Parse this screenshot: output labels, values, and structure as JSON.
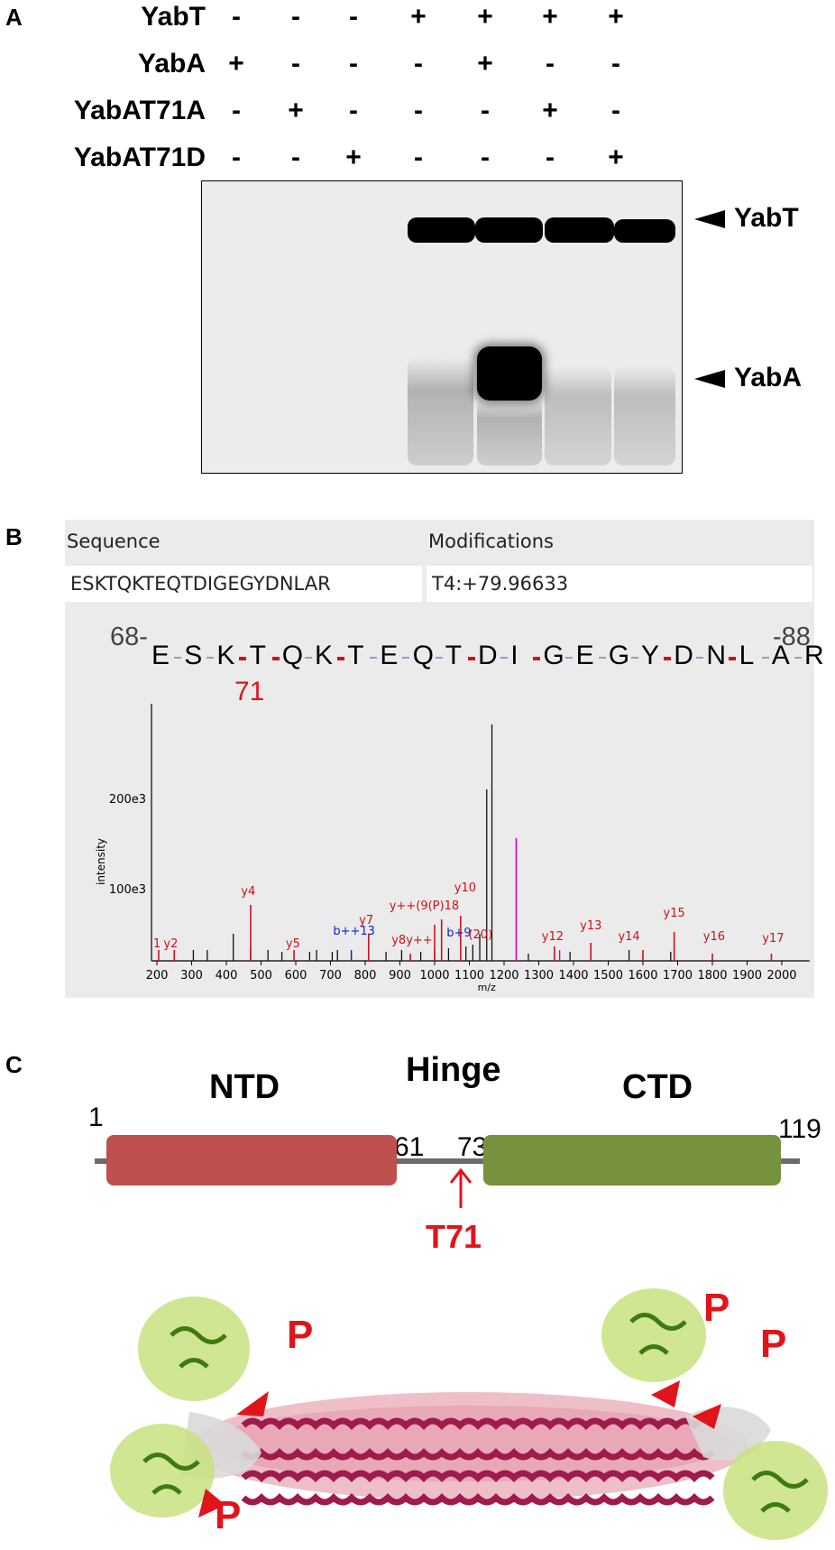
{
  "panel_a": {
    "letter": "A",
    "rows": [
      {
        "label": "YabT",
        "signs": [
          "-",
          "-",
          "-",
          "+",
          "+",
          "+",
          "+"
        ]
      },
      {
        "label": "YabA",
        "signs": [
          "+",
          "-",
          "-",
          "-",
          "+",
          "-",
          "-"
        ]
      },
      {
        "label": "YabAT71A",
        "signs": [
          "-",
          "+",
          "-",
          "-",
          "-",
          "+",
          "-"
        ]
      },
      {
        "label": "YabAT71D",
        "signs": [
          "-",
          "-",
          "+",
          "-",
          "-",
          "-",
          "+"
        ]
      }
    ],
    "band_labels": {
      "top": "YabT",
      "bottom": "YabA"
    }
  },
  "panel_b": {
    "letter": "B",
    "sequence_header": "Sequence",
    "modifications_header": "Modifications",
    "sequence_value": "ESKTQKTEQTDIGEGYDNLAR",
    "modification_value": "T4:+79.96633",
    "start_pos": "68-",
    "end_pos": "-88",
    "residues": [
      "E",
      "S",
      "K",
      "T",
      "Q",
      "K",
      "T",
      "E",
      "Q",
      "T",
      "D",
      "I",
      "G",
      "E",
      "G",
      "Y",
      "D",
      "N",
      "L",
      "A",
      "R"
    ],
    "site_label": "71",
    "y_axis_label": "intensity",
    "y_ticks": [
      "200e3",
      "100e3"
    ],
    "x_axis_label": "m/z",
    "x_ticks": [
      "200",
      "300",
      "400",
      "500",
      "600",
      "700",
      "800",
      "900",
      "1000",
      "1100",
      "1200",
      "1300",
      "1400",
      "1500",
      "1600",
      "1700",
      "1800",
      "1900",
      "2000"
    ],
    "ion_labels": [
      {
        "text": "1",
        "color": "red"
      },
      {
        "text": "y2",
        "color": "red"
      },
      {
        "text": "y4",
        "color": "red"
      },
      {
        "text": "y5",
        "color": "red"
      },
      {
        "text": "y7",
        "color": "red"
      },
      {
        "text": "b++13",
        "color": "blue"
      },
      {
        "text": "y8y++",
        "color": "red"
      },
      {
        "text": "y++(9(P)18",
        "color": "red"
      },
      {
        "text": "y10",
        "color": "red"
      },
      {
        "text": "b+9",
        "color": "blue"
      },
      {
        "text": "(20)",
        "color": "red"
      },
      {
        "text": "y12",
        "color": "red"
      },
      {
        "text": "y13",
        "color": "red"
      },
      {
        "text": "y14",
        "color": "red"
      },
      {
        "text": "y15",
        "color": "red"
      },
      {
        "text": "y16",
        "color": "red"
      },
      {
        "text": "y17",
        "color": "red"
      }
    ]
  },
  "panel_c": {
    "letter": "C",
    "ntd": "NTD",
    "hinge": "Hinge",
    "ctd": "CTD",
    "positions": [
      "1",
      "61",
      "73",
      "119"
    ],
    "site": "T71",
    "p": "P",
    "colors": {
      "ntd": "#c0504d",
      "ctd": "#76923c",
      "site": "#e0141b"
    }
  }
}
